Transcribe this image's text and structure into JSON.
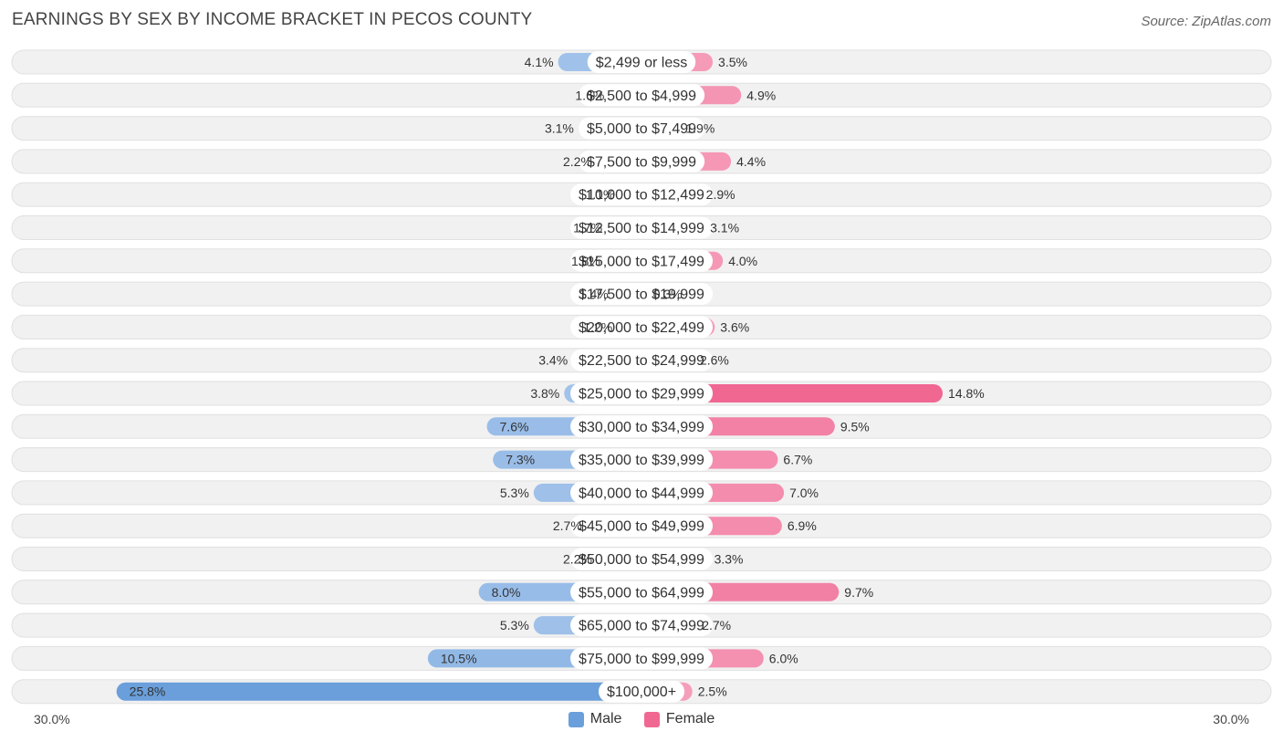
{
  "title": "EARNINGS BY SEX BY INCOME BRACKET IN PECOS COUNTY",
  "source": "Source: ZipAtlas.com",
  "colors": {
    "male": "#6a9fdb",
    "male_light": "#a7c6ec",
    "female": "#f06792",
    "female_light": "#f6a5bf",
    "row_bg": "#f1f1f1"
  },
  "chart_data": {
    "type": "bar",
    "orientation": "horizontal-diverging",
    "title": "EARNINGS BY SEX BY INCOME BRACKET IN PECOS COUNTY",
    "xlim": [
      -30,
      30
    ],
    "axis_labels": {
      "left": "30.0%",
      "right": "30.0%"
    },
    "legend": [
      {
        "name": "Male",
        "color": "#6a9fdb"
      },
      {
        "name": "Female",
        "color": "#f06792"
      }
    ],
    "categories": [
      "$2,499 or less",
      "$2,500 to $4,999",
      "$5,000 to $7,499",
      "$7,500 to $9,999",
      "$10,000 to $12,499",
      "$12,500 to $14,999",
      "$15,000 to $17,499",
      "$17,500 to $19,999",
      "$20,000 to $22,499",
      "$22,500 to $24,999",
      "$25,000 to $29,999",
      "$30,000 to $34,999",
      "$35,000 to $39,999",
      "$40,000 to $44,999",
      "$45,000 to $49,999",
      "$50,000 to $54,999",
      "$55,000 to $64,999",
      "$65,000 to $74,999",
      "$75,000 to $99,999",
      "$100,000+"
    ],
    "series": [
      {
        "name": "Male",
        "values": [
          4.1,
          1.6,
          3.1,
          2.2,
          1.1,
          1.7,
          1.8,
          1.4,
          1.2,
          3.4,
          3.8,
          7.6,
          7.3,
          5.3,
          2.7,
          2.2,
          8.0,
          5.3,
          10.5,
          25.8
        ],
        "labels": [
          "4.1%",
          "1.6%",
          "3.1%",
          "2.2%",
          "1.1%",
          "1.7%",
          "1.8%",
          "1.4%",
          "1.2%",
          "3.4%",
          "3.8%",
          "7.6%",
          "7.3%",
          "5.3%",
          "2.7%",
          "2.2%",
          "8.0%",
          "5.3%",
          "10.5%",
          "25.8%"
        ]
      },
      {
        "name": "Female",
        "values": [
          3.5,
          4.9,
          1.9,
          4.4,
          2.9,
          3.1,
          4.0,
          0.3,
          3.6,
          2.6,
          14.8,
          9.5,
          6.7,
          7.0,
          6.9,
          3.3,
          9.7,
          2.7,
          6.0,
          2.5
        ],
        "labels": [
          "3.5%",
          "4.9%",
          "1.9%",
          "4.4%",
          "2.9%",
          "3.1%",
          "4.0%",
          "0.3%",
          "3.6%",
          "2.6%",
          "14.8%",
          "9.5%",
          "6.7%",
          "7.0%",
          "6.9%",
          "3.3%",
          "9.7%",
          "2.7%",
          "6.0%",
          "2.5%"
        ]
      }
    ]
  }
}
